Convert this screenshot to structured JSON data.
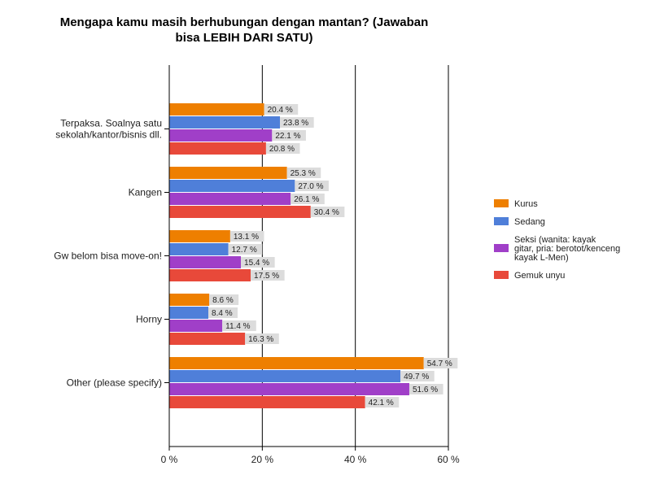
{
  "chart_data": {
    "type": "bar",
    "orientation": "horizontal",
    "title_lines": [
      "Mengapa kamu masih berhubungan dengan mantan? (Jawaban",
      "bisa LEBIH DARI SATU)"
    ],
    "categories": [
      {
        "lines": [
          "Terpaksa. Soalnya satu",
          "sekolah/kantor/bisnis dll."
        ]
      },
      {
        "lines": [
          "Kangen"
        ]
      },
      {
        "lines": [
          "Gw belom bisa move-on!"
        ]
      },
      {
        "lines": [
          "Horny"
        ]
      },
      {
        "lines": [
          "Other (please specify)"
        ]
      }
    ],
    "series": [
      {
        "name_lines": [
          "Kurus"
        ],
        "color": "#ee7f00",
        "values": [
          20.4,
          25.3,
          13.1,
          8.6,
          54.7
        ]
      },
      {
        "name_lines": [
          "Sedang"
        ],
        "color": "#4f7fd9",
        "values": [
          23.8,
          27.0,
          12.7,
          8.4,
          49.7
        ]
      },
      {
        "name_lines": [
          "Seksi (wanita: kayak",
          "gitar, pria: berotot/kenceng",
          "kayak L-Men)"
        ],
        "color": "#a03fc8",
        "values": [
          22.1,
          26.1,
          15.4,
          11.4,
          51.6
        ]
      },
      {
        "name_lines": [
          "Gemuk unyu"
        ],
        "color": "#e8493a",
        "values": [
          20.8,
          30.4,
          17.5,
          16.3,
          42.1
        ]
      }
    ],
    "value_suffix": " %",
    "x_range": [
      0,
      60
    ],
    "x_ticks": [
      0,
      20,
      40,
      60
    ],
    "x_tick_labels": [
      "0 %",
      "20 %",
      "40 %",
      "60 %"
    ],
    "gridlines": true,
    "legend_position": "right"
  }
}
